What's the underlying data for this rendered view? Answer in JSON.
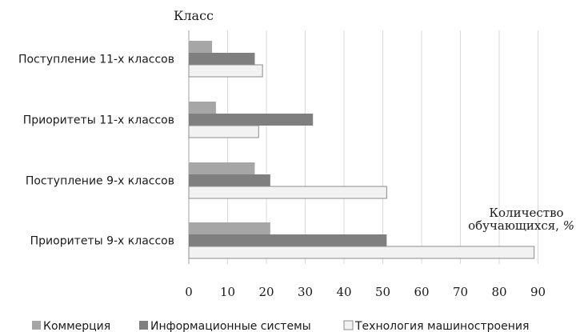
{
  "chart_data": {
    "type": "bar",
    "orientation": "horizontal",
    "y_axis_title": "Класс",
    "x_axis_title_line1": "Количество",
    "x_axis_title_line2_text": "обучающихся, ",
    "x_axis_title_line2_unit": "%",
    "categories": [
      "Поступление 11-х классов",
      "Приоритеты 11-х классов",
      "Поступление 9-х классов",
      "Приоритеты 9-х классов"
    ],
    "series": [
      {
        "name": "Коммерция",
        "color": "#a6a6a6",
        "values": [
          6,
          7,
          17,
          21
        ]
      },
      {
        "name": "Информационные системы",
        "color": "#7f7f7f",
        "values": [
          17,
          32,
          21,
          51
        ]
      },
      {
        "name": "Технология машиностроения",
        "color": "#f2f2f2",
        "values": [
          19,
          18,
          51,
          89
        ]
      }
    ],
    "xlim": [
      0,
      90
    ],
    "xticks": [
      0,
      10,
      20,
      30,
      40,
      50,
      60,
      70,
      80,
      90
    ],
    "grid": "vertical",
    "legend_position": "bottom"
  }
}
